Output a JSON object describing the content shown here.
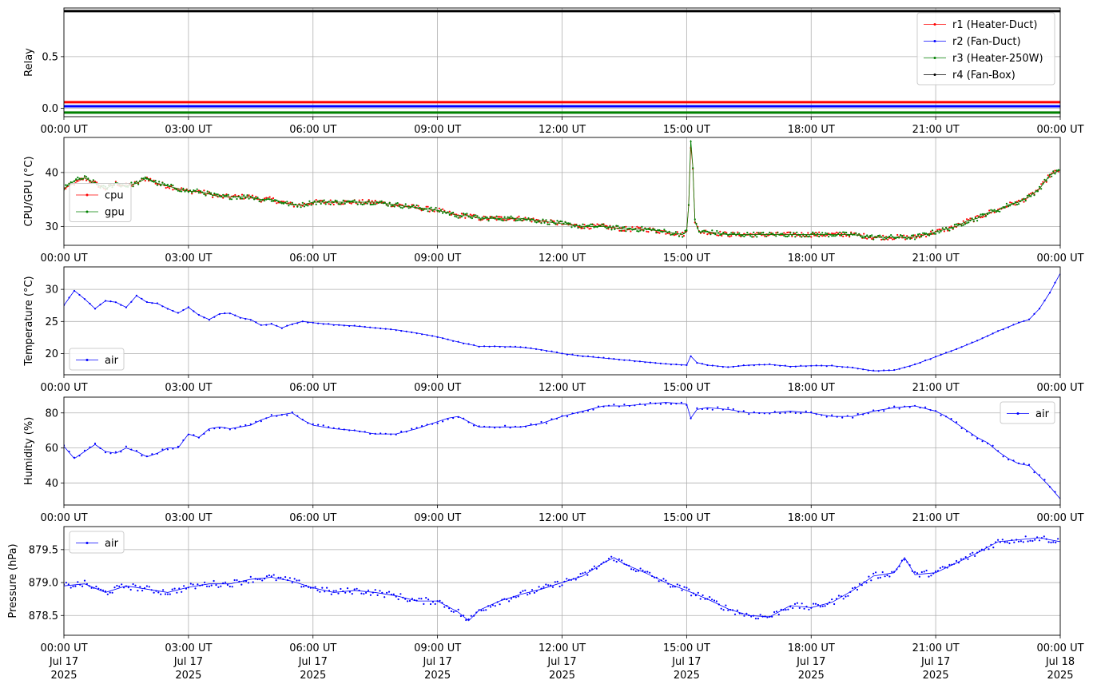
{
  "x_ticks": [
    "00:00 UT",
    "03:00 UT",
    "06:00 UT",
    "09:00 UT",
    "12:00 UT",
    "15:00 UT",
    "18:00 UT",
    "21:00 UT",
    "00:00 UT"
  ],
  "x_date_lines": [
    [
      "Jul 17",
      "2025"
    ],
    [
      "Jul 17",
      "2025"
    ],
    [
      "Jul 17",
      "2025"
    ],
    [
      "Jul 17",
      "2025"
    ],
    [
      "Jul 17",
      "2025"
    ],
    [
      "Jul 17",
      "2025"
    ],
    [
      "Jul 17",
      "2025"
    ],
    [
      "Jul 17",
      "2025"
    ],
    [
      "Jul 18",
      "2025"
    ]
  ],
  "chart_data": [
    {
      "type": "line",
      "ylabel": "Relay",
      "x_hours": [
        0,
        24
      ],
      "xlim": [
        0,
        24
      ],
      "ylim": [
        -0.08,
        0.97
      ],
      "yticks": [
        0.0,
        0.5
      ],
      "ytick_labels": [
        "0.0",
        "0.5"
      ],
      "grid": true,
      "legend": "top-right",
      "series": [
        {
          "name": "r1 (Heater-Duct)",
          "color": "#ff0000",
          "values": [
            0.06,
            0.06
          ]
        },
        {
          "name": "r2 (Fan-Duct)",
          "color": "#0000ff",
          "values": [
            0.02,
            0.02
          ]
        },
        {
          "name": "r3 (Heater-250W)",
          "color": "#008000",
          "values": [
            -0.04,
            -0.04
          ]
        },
        {
          "name": "r4 (Fan-Box)",
          "color": "#000000",
          "values": [
            0.94,
            0.94
          ]
        }
      ]
    },
    {
      "type": "line",
      "ylabel": "CPU/GPU (°C)",
      "x_hours": [
        0,
        0.25,
        0.5,
        0.75,
        1.0,
        1.25,
        1.5,
        1.75,
        2.0,
        2.25,
        2.5,
        2.75,
        3.0,
        3.25,
        3.5,
        3.75,
        4.0,
        4.25,
        4.5,
        4.75,
        5.0,
        5.25,
        5.5,
        5.75,
        6.0,
        6.5,
        7.0,
        7.5,
        8.0,
        8.5,
        9.0,
        9.25,
        9.5,
        9.75,
        10.0,
        10.5,
        11.0,
        11.5,
        12.0,
        12.5,
        13.0,
        13.5,
        14.0,
        14.5,
        14.9,
        15.0,
        15.05,
        15.1,
        15.15,
        15.2,
        15.3,
        15.5,
        16.0,
        16.5,
        17.0,
        17.5,
        18.0,
        18.5,
        19.0,
        19.5,
        20.0,
        20.5,
        21.0,
        21.25,
        21.5,
        21.75,
        22.0,
        22.25,
        22.5,
        22.75,
        23.0,
        23.25,
        23.5,
        23.75,
        24.0
      ],
      "xlim": [
        0,
        24
      ],
      "ylim": [
        26.5,
        46.5
      ],
      "yticks": [
        30,
        40
      ],
      "ytick_labels": [
        "30",
        "40"
      ],
      "grid": true,
      "legend": "center-left",
      "series": [
        {
          "name": "cpu",
          "color": "#ff0000",
          "values": [
            37,
            38,
            39,
            38,
            37,
            38,
            37.5,
            38,
            39,
            38,
            37.5,
            37,
            36.5,
            36.5,
            36,
            35.5,
            35.5,
            35.5,
            35.5,
            35,
            35,
            34.5,
            34,
            34,
            34.5,
            34.5,
            34.5,
            34.5,
            34,
            33.5,
            33,
            32.5,
            32,
            32,
            31.5,
            31.5,
            31.5,
            31,
            30.5,
            30,
            30,
            29.5,
            29.5,
            29,
            28.5,
            29,
            34,
            45,
            41,
            31,
            29,
            29,
            28.5,
            28.5,
            28.5,
            28.5,
            28.5,
            28.5,
            28.5,
            28,
            28,
            28,
            29,
            29.5,
            30,
            31,
            31.5,
            32.5,
            33,
            34,
            34.5,
            35.5,
            37,
            39.5,
            40.5
          ]
        },
        {
          "name": "gpu",
          "color": "#008000",
          "values": [
            37,
            38.5,
            39,
            38,
            37,
            38,
            37.5,
            38,
            39,
            38,
            37.5,
            37,
            36.5,
            36.5,
            36,
            35.5,
            35.5,
            35.5,
            35.5,
            35,
            35,
            34.5,
            34,
            34,
            34.5,
            34.5,
            34.5,
            34.5,
            34,
            33.5,
            33,
            32.5,
            32,
            32,
            31.5,
            31.5,
            31.5,
            31,
            30.5,
            30,
            30,
            29.5,
            29.5,
            29,
            28.5,
            29,
            34,
            46,
            41,
            31,
            29,
            29,
            28.5,
            28.5,
            28.5,
            28.5,
            28.5,
            28.5,
            28.5,
            28,
            28,
            28,
            29,
            29.5,
            30,
            31,
            31.5,
            32.5,
            33,
            34,
            34.5,
            35.5,
            37,
            39.5,
            40.5
          ]
        }
      ]
    },
    {
      "type": "line",
      "ylabel": "Temperature (°C)",
      "x_hours": [
        0,
        0.25,
        0.5,
        0.75,
        1.0,
        1.25,
        1.5,
        1.75,
        2.0,
        2.25,
        2.5,
        2.75,
        3.0,
        3.25,
        3.5,
        3.75,
        4.0,
        4.25,
        4.5,
        4.75,
        5.0,
        5.25,
        5.5,
        5.75,
        6.0,
        6.5,
        7.0,
        7.5,
        8.0,
        8.5,
        9.0,
        9.5,
        10.0,
        10.5,
        11.0,
        11.5,
        12.0,
        12.5,
        13.0,
        13.5,
        14.0,
        14.5,
        15.0,
        15.1,
        15.25,
        15.5,
        16.0,
        16.5,
        17.0,
        17.5,
        18.0,
        18.5,
        19.0,
        19.5,
        20.0,
        20.5,
        21.0,
        21.5,
        22.0,
        22.5,
        23.0,
        23.25,
        23.5,
        23.75,
        24.0
      ],
      "xlim": [
        0,
        24
      ],
      "ylim": [
        16.7,
        33.5
      ],
      "yticks": [
        20,
        25,
        30
      ],
      "ytick_labels": [
        "20",
        "25",
        "30"
      ],
      "grid": true,
      "legend": "bottom-left",
      "series": [
        {
          "name": "air",
          "color": "#0000ff",
          "values": [
            27.5,
            29.8,
            28.5,
            27.0,
            28.2,
            28.0,
            27.2,
            29.0,
            28.0,
            27.8,
            27.0,
            26.3,
            27.2,
            26.0,
            25.3,
            26.2,
            26.3,
            25.6,
            25.3,
            24.4,
            24.6,
            24.0,
            24.6,
            25.0,
            24.8,
            24.5,
            24.3,
            24.0,
            23.7,
            23.2,
            22.6,
            21.8,
            21.1,
            21.1,
            21.0,
            20.6,
            20.0,
            19.6,
            19.3,
            19.0,
            18.7,
            18.4,
            18.2,
            19.6,
            18.6,
            18.2,
            17.9,
            18.2,
            18.3,
            18.0,
            18.1,
            18.1,
            17.8,
            17.3,
            17.4,
            18.3,
            19.5,
            20.7,
            22.0,
            23.5,
            24.8,
            25.3,
            27.0,
            29.5,
            32.5
          ]
        }
      ]
    },
    {
      "type": "line",
      "ylabel": "Humidity (%)",
      "x_hours": [
        0,
        0.25,
        0.5,
        0.75,
        1.0,
        1.25,
        1.5,
        1.75,
        2.0,
        2.25,
        2.5,
        2.75,
        3.0,
        3.25,
        3.5,
        3.75,
        4.0,
        4.25,
        4.5,
        4.75,
        5.0,
        5.25,
        5.5,
        5.75,
        6.0,
        6.5,
        7.0,
        7.5,
        8.0,
        8.5,
        9.0,
        9.25,
        9.5,
        9.75,
        10.0,
        10.5,
        11.0,
        11.5,
        12.0,
        12.5,
        13.0,
        13.5,
        14.0,
        14.5,
        15.0,
        15.1,
        15.25,
        15.5,
        16.0,
        16.5,
        17.0,
        17.5,
        18.0,
        18.5,
        19.0,
        19.5,
        20.0,
        20.5,
        21.0,
        21.25,
        21.5,
        21.75,
        22.0,
        22.25,
        22.5,
        22.75,
        23.0,
        23.25,
        23.5,
        23.75,
        24.0
      ],
      "xlim": [
        0,
        24
      ],
      "ylim": [
        27.5,
        89
      ],
      "yticks": [
        40,
        60,
        80
      ],
      "ytick_labels": [
        "40",
        "60",
        "80"
      ],
      "grid": true,
      "legend": "top-right",
      "series": [
        {
          "name": "air",
          "color": "#0000ff",
          "values": [
            61,
            54,
            58,
            62,
            58,
            57,
            60,
            58,
            55,
            57,
            60,
            60,
            68,
            66,
            71,
            72,
            71,
            72,
            73,
            76,
            78,
            79,
            80,
            76,
            73,
            71,
            70,
            68,
            68,
            71,
            75,
            77,
            78,
            75,
            72,
            72,
            72,
            74,
            78,
            81,
            84,
            84,
            85,
            86,
            85,
            77,
            82,
            83,
            82,
            80,
            80,
            81,
            80,
            78,
            78,
            81,
            83,
            84,
            81,
            78,
            74,
            70,
            66,
            63,
            58,
            54,
            51,
            50,
            44,
            38,
            31
          ]
        }
      ]
    },
    {
      "type": "line",
      "ylabel": "Pressure (hPa)",
      "x_hours": [
        0,
        0.5,
        1.0,
        1.5,
        2.0,
        2.5,
        3.0,
        3.5,
        4.0,
        4.5,
        5.0,
        5.5,
        6.0,
        6.5,
        7.0,
        7.5,
        8.0,
        8.5,
        9.0,
        9.5,
        9.75,
        10.0,
        10.5,
        11.0,
        11.5,
        12.0,
        12.5,
        13.0,
        13.25,
        13.5,
        14.0,
        14.5,
        15.0,
        15.5,
        16.0,
        16.5,
        17.0,
        17.5,
        18.0,
        18.5,
        19.0,
        19.5,
        20.0,
        20.25,
        20.5,
        21.0,
        21.5,
        22.0,
        22.5,
        23.0,
        23.5,
        24.0
      ],
      "xlim": [
        0,
        24
      ],
      "ylim": [
        878.2,
        879.85
      ],
      "yticks": [
        878.5,
        879.0,
        879.5
      ],
      "ytick_labels": [
        "878.5",
        "879.0",
        "879.5"
      ],
      "grid": true,
      "legend": "top-left",
      "series": [
        {
          "name": "air",
          "color": "#0000ff",
          "values": [
            878.95,
            878.98,
            878.85,
            878.95,
            878.9,
            878.85,
            878.93,
            878.98,
            878.98,
            879.05,
            879.08,
            879.02,
            878.92,
            878.85,
            878.88,
            878.85,
            878.8,
            878.72,
            878.72,
            878.55,
            878.42,
            878.58,
            878.72,
            878.82,
            878.9,
            879.0,
            879.1,
            879.3,
            879.38,
            879.28,
            879.15,
            879.0,
            878.88,
            878.75,
            878.6,
            878.5,
            878.48,
            878.65,
            878.62,
            878.7,
            878.88,
            879.1,
            879.15,
            879.38,
            879.12,
            879.15,
            879.3,
            879.45,
            879.62,
            879.65,
            879.68,
            879.62
          ]
        }
      ]
    }
  ]
}
